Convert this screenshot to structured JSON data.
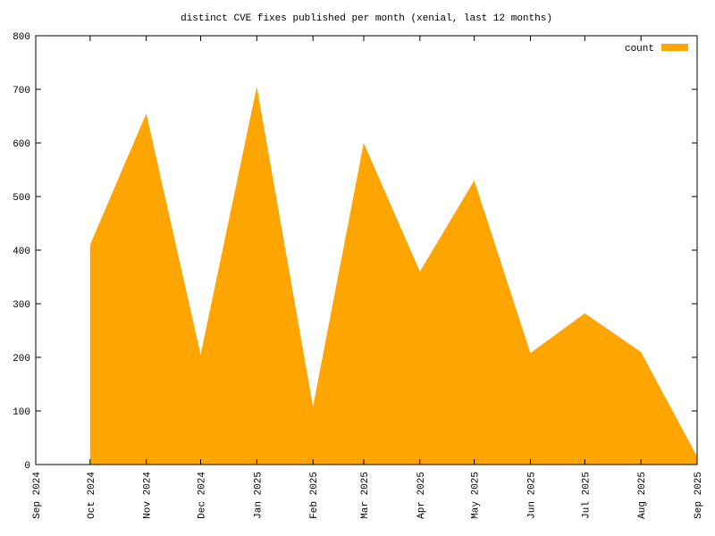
{
  "chart_data": {
    "type": "area",
    "title": "distinct CVE fixes published per month (xenial, last 12 months)",
    "x": [
      "2024-10",
      "2024-11",
      "2024-12",
      "2025-01",
      "2025-02",
      "2025-03",
      "2025-04",
      "2025-05",
      "2025-06",
      "2025-07",
      "2025-08",
      "2025-09"
    ],
    "series": [
      {
        "name": "count",
        "color": "#ffa500",
        "values": [
          410,
          655,
          205,
          705,
          108,
          600,
          360,
          530,
          208,
          282,
          210,
          15
        ]
      }
    ],
    "xlim": [
      "2024-09",
      "2025-09"
    ],
    "xticks": [
      {
        "value": "2024-09",
        "label": "Sep 2024"
      },
      {
        "value": "2024-10",
        "label": "Oct 2024"
      },
      {
        "value": "2024-11",
        "label": "Nov 2024"
      },
      {
        "value": "2024-12",
        "label": "Dec 2024"
      },
      {
        "value": "2025-01",
        "label": "Jan 2025"
      },
      {
        "value": "2025-02",
        "label": "Feb 2025"
      },
      {
        "value": "2025-03",
        "label": "Mar 2025"
      },
      {
        "value": "2025-04",
        "label": "Apr 2025"
      },
      {
        "value": "2025-05",
        "label": "May 2025"
      },
      {
        "value": "2025-06",
        "label": "Jun 2025"
      },
      {
        "value": "2025-07",
        "label": "Jul 2025"
      },
      {
        "value": "2025-08",
        "label": "Aug 2025"
      },
      {
        "value": "2025-09",
        "label": "Sep 2025"
      }
    ],
    "ylim": [
      0,
      800
    ],
    "yticks": [
      0,
      100,
      200,
      300,
      400,
      500,
      600,
      700,
      800
    ],
    "legend": "top-right"
  }
}
